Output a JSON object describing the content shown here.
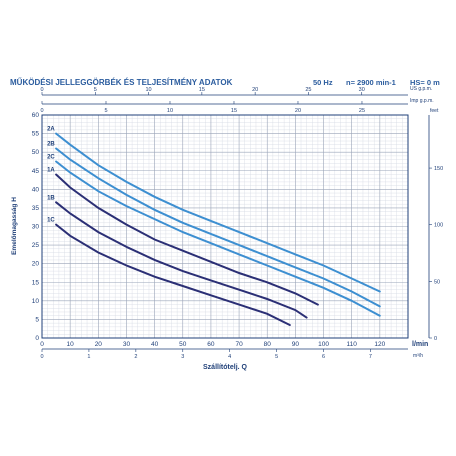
{
  "header": {
    "title": "MŰKÖDÉSI JELLEGGÖRBÉK ÉS TELJESÍTMÉNY ADATOK",
    "frequency": "50 Hz",
    "speed": "n= 2900 min-1",
    "suction_head": "HS= 0 m"
  },
  "chart_data": {
    "type": "line",
    "xlabel": "Szállítótelj. Q",
    "ylabel": "Emelőmagasság H",
    "x_unit": "l/min",
    "xlim": [
      0,
      130
    ],
    "ylim": [
      0,
      60
    ],
    "y_ticks": [
      0,
      5,
      10,
      15,
      20,
      25,
      30,
      35,
      40,
      45,
      50,
      55,
      60
    ],
    "x_ticks": [
      0,
      10,
      20,
      30,
      40,
      50,
      60,
      70,
      80,
      90,
      100,
      110,
      120
    ],
    "top_axis_1": {
      "unit": "US g.p.m.",
      "ticks": [
        0,
        5,
        10,
        15,
        20,
        25,
        30
      ]
    },
    "top_axis_2": {
      "unit": "Imp g.p.m.",
      "ticks": [
        0,
        5,
        10,
        15,
        20,
        25
      ]
    },
    "bottom_axis_2": {
      "unit": "m³/h",
      "ticks": [
        0,
        1,
        2,
        3,
        4,
        5,
        6,
        7
      ]
    },
    "right_axis": {
      "unit": "feet",
      "ticks": [
        0,
        50,
        100,
        150
      ]
    },
    "grid": true,
    "series": [
      {
        "name": "2A",
        "color": "#3d8fd1",
        "x": [
          5,
          10,
          20,
          30,
          40,
          50,
          60,
          70,
          80,
          90,
          100,
          110,
          120
        ],
        "y": [
          55,
          52,
          46.5,
          42,
          38,
          34.5,
          31.5,
          28.5,
          25.5,
          22.5,
          19.5,
          16,
          12.5
        ]
      },
      {
        "name": "2B",
        "color": "#3d8fd1",
        "x": [
          5,
          10,
          20,
          30,
          40,
          50,
          60,
          70,
          80,
          90,
          100,
          110,
          120
        ],
        "y": [
          51,
          48,
          43,
          38.5,
          34.5,
          31,
          28,
          25,
          22,
          19,
          16,
          12.5,
          8.5
        ]
      },
      {
        "name": "2C",
        "color": "#3d8fd1",
        "x": [
          5,
          10,
          20,
          30,
          40,
          50,
          60,
          70,
          80,
          90,
          100,
          110,
          120
        ],
        "y": [
          47.5,
          44.5,
          39.5,
          35.5,
          32,
          28.5,
          25.5,
          22.5,
          19.5,
          16.5,
          13.5,
          10,
          6
        ]
      },
      {
        "name": "1A",
        "color": "#2b2f75",
        "x": [
          5,
          10,
          20,
          30,
          40,
          50,
          60,
          70,
          80,
          90,
          98
        ],
        "y": [
          44,
          40.5,
          35,
          30.5,
          26.5,
          23.5,
          20.5,
          17.5,
          15,
          12,
          9
        ]
      },
      {
        "name": "1B",
        "color": "#2b2f75",
        "x": [
          5,
          10,
          20,
          30,
          40,
          50,
          60,
          70,
          80,
          90,
          94
        ],
        "y": [
          36.5,
          33.5,
          28.5,
          24.5,
          21,
          18,
          15.5,
          13,
          10.5,
          7.5,
          5.5
        ]
      },
      {
        "name": "1C",
        "color": "#2b2f75",
        "x": [
          5,
          10,
          20,
          30,
          40,
          50,
          60,
          70,
          80,
          88
        ],
        "y": [
          30.5,
          27.5,
          23,
          19.5,
          16.5,
          14,
          11.5,
          9,
          6.5,
          3.5
        ]
      }
    ]
  }
}
